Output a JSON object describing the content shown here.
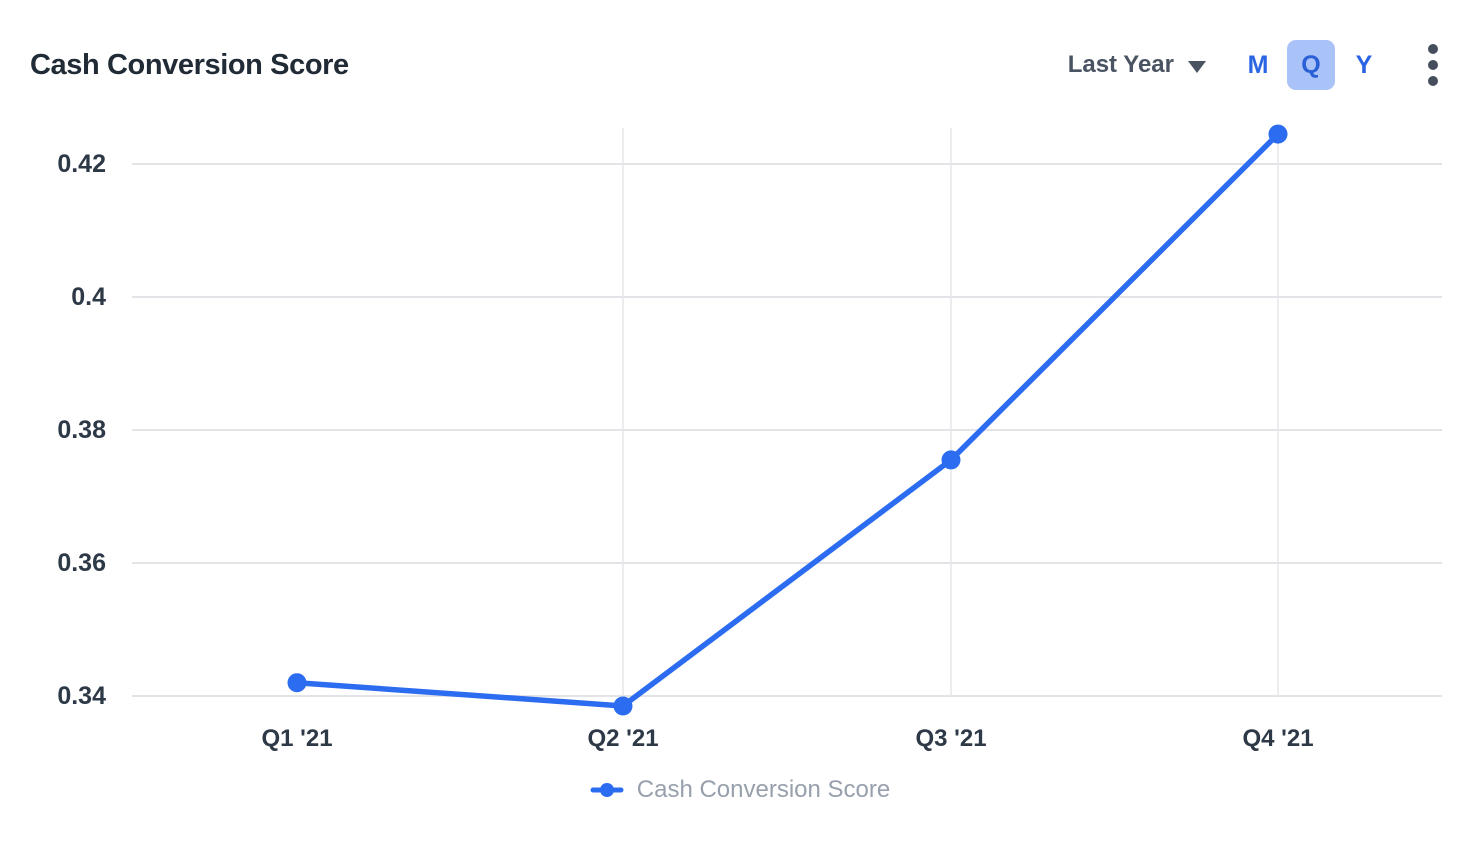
{
  "header": {
    "title": "Cash Conversion Score",
    "range_selector": {
      "label": "Last Year",
      "icon": "caret-down-icon"
    },
    "interval_toggle": {
      "options": [
        "M",
        "Q",
        "Y"
      ],
      "selected": "Q"
    },
    "menu_icon": "kebab-menu-icon"
  },
  "chart_data": {
    "type": "line",
    "title": "Cash Conversion Score",
    "categories": [
      "Q1 '21",
      "Q2 '21",
      "Q3 '21",
      "Q4 '21"
    ],
    "series": [
      {
        "name": "Cash Conversion Score",
        "values": [
          0.342,
          0.3385,
          0.3755,
          0.4245
        ]
      }
    ],
    "y_ticks": [
      0.34,
      0.36,
      0.38,
      0.4,
      0.42
    ],
    "y_tick_labels": [
      "0.34",
      "0.36",
      "0.38",
      "0.4",
      "0.42"
    ],
    "ylim": [
      0.3325,
      0.427
    ],
    "xlabel": "",
    "ylabel": "",
    "grid": {
      "horizontal": true,
      "vertical_at": [
        "Q2 '21",
        "Q3 '21",
        "Q4 '21"
      ]
    },
    "legend": {
      "position": "bottom",
      "entries": [
        "Cash Conversion Score"
      ]
    },
    "colors": {
      "line": "#2b6cf0",
      "point": "#2b6cf0",
      "grid": "#e2e4e7",
      "tick_label": "#2e3947",
      "legend_text": "#97a0ac",
      "accent_bg": "#a9c2f8"
    }
  }
}
